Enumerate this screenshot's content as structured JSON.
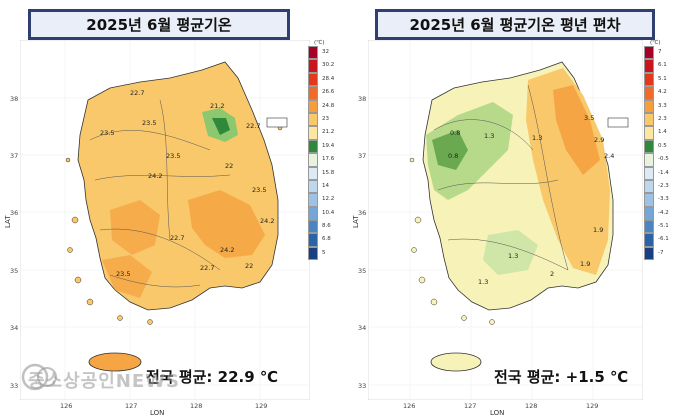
{
  "left": {
    "title": "2025년 6월 평균기온",
    "national_average": "전국 평균: 22.9 ℃",
    "legend_unit": "(℃)",
    "legend": [
      {
        "label": "32",
        "color": "#a50026"
      },
      {
        "label": "30.2",
        "color": "#c8161f"
      },
      {
        "label": "28.4",
        "color": "#e1391c"
      },
      {
        "label": "26.6",
        "color": "#f06a2a"
      },
      {
        "label": "24.8",
        "color": "#f59e3c"
      },
      {
        "label": "23",
        "color": "#f9c86b"
      },
      {
        "label": "21.2",
        "color": "#fbe8a0"
      },
      {
        "label": "19.4",
        "color": "#2e8a3a"
      },
      {
        "label": "17.6",
        "color": "#e7f3de"
      },
      {
        "label": "15.8",
        "color": "#dceaf5"
      },
      {
        "label": "14",
        "color": "#bcd7ee"
      },
      {
        "label": "12.2",
        "color": "#9cc3e4"
      },
      {
        "label": "10.4",
        "color": "#73a7d6"
      },
      {
        "label": "8.6",
        "color": "#4a86c4"
      },
      {
        "label": "6.8",
        "color": "#2a63a8"
      },
      {
        "label": "5",
        "color": "#173f82"
      }
    ],
    "contour_labels": [
      "22.7",
      "23.5",
      "23.5",
      "21.2",
      "22.7",
      "23.5",
      "24.2",
      "22",
      "23.5",
      "24.2",
      "24.2",
      "22.7",
      "23.5",
      "22.7",
      "22"
    ]
  },
  "right": {
    "title": "2025년 6월 평균기온  평년 편차",
    "national_average": "전국 평균: +1.5 ℃",
    "legend_unit": "(℃)",
    "legend": [
      {
        "label": "7",
        "color": "#a50026"
      },
      {
        "label": "6.1",
        "color": "#c8161f"
      },
      {
        "label": "5.1",
        "color": "#e1391c"
      },
      {
        "label": "4.2",
        "color": "#f06a2a"
      },
      {
        "label": "3.3",
        "color": "#f59e3c"
      },
      {
        "label": "2.3",
        "color": "#f9c86b"
      },
      {
        "label": "1.4",
        "color": "#fbe8a0"
      },
      {
        "label": "0.5",
        "color": "#2e8a3a"
      },
      {
        "label": "-0.5",
        "color": "#e7f3de"
      },
      {
        "label": "-1.4",
        "color": "#dceaf5"
      },
      {
        "label": "-2.3",
        "color": "#bcd7ee"
      },
      {
        "label": "-3.3",
        "color": "#9cc3e4"
      },
      {
        "label": "-4.2",
        "color": "#73a7d6"
      },
      {
        "label": "-5.1",
        "color": "#4a86c4"
      },
      {
        "label": "-6.1",
        "color": "#2a63a8"
      },
      {
        "label": "-7",
        "color": "#173f82"
      }
    ],
    "contour_labels": [
      "3.5",
      "2.9",
      "2.4",
      "1.3",
      "1.3",
      "0.8",
      "0.8",
      "1.3",
      "1.9",
      "1.3",
      "1.9",
      "2"
    ]
  },
  "axes": {
    "lat_label": "LAT",
    "lon_label": "LON",
    "lat_ticks": [
      "38",
      "37",
      "36",
      "35",
      "34",
      "33"
    ],
    "lon_ticks": [
      "126",
      "127",
      "128",
      "129"
    ]
  },
  "watermark": "중소상공인NEWS"
}
